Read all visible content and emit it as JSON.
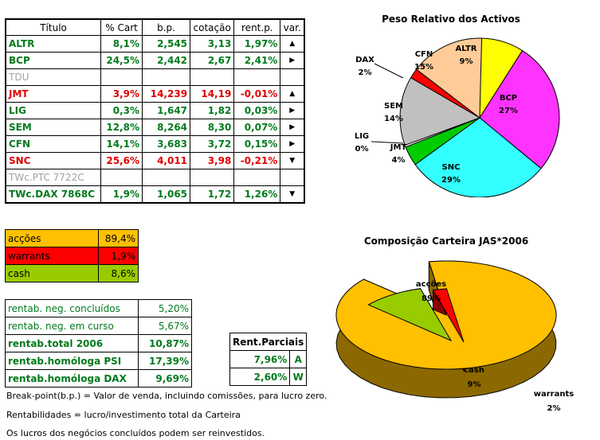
{
  "portfolio": {
    "headers": [
      "Título",
      "% Cart",
      "b.p.",
      "cotação",
      "rent.p.",
      "var."
    ],
    "rows": [
      {
        "titulo": "ALTR",
        "cart": "8,1%",
        "bp": "2,545",
        "cot": "3,13",
        "rent": "1,97%",
        "var": "▲",
        "color": "green"
      },
      {
        "titulo": "BCP",
        "cart": "24,5%",
        "bp": "2,442",
        "cot": "2,67",
        "rent": "2,41%",
        "var": "▶",
        "color": "green"
      },
      {
        "titulo": "TDU",
        "cart": "",
        "bp": "",
        "cot": "",
        "rent": "",
        "var": "",
        "color": "gray"
      },
      {
        "titulo": "JMT",
        "cart": "3,9%",
        "bp": "14,239",
        "cot": "14,19",
        "rent": "-0,01%",
        "var": "▲",
        "color": "red"
      },
      {
        "titulo": "LIG",
        "cart": "0,3%",
        "bp": "1,647",
        "cot": "1,82",
        "rent": "0,03%",
        "var": "▶",
        "color": "green"
      },
      {
        "titulo": "SEM",
        "cart": "12,8%",
        "bp": "8,264",
        "cot": "8,30",
        "rent": "0,07%",
        "var": "▶",
        "color": "green"
      },
      {
        "titulo": "CFN",
        "cart": "14,1%",
        "bp": "3,683",
        "cot": "3,72",
        "rent": "0,15%",
        "var": "▶",
        "color": "green"
      },
      {
        "titulo": "SNC",
        "cart": "25,6%",
        "bp": "4,011",
        "cot": "3,98",
        "rent": "-0,21%",
        "var": "▼",
        "color": "red"
      },
      {
        "titulo": "TWc.PTC 7722C",
        "cart": "",
        "bp": "",
        "cot": "",
        "rent": "",
        "var": "",
        "color": "gray"
      },
      {
        "titulo": "TWc.DAX 7868C",
        "cart": "1,9%",
        "bp": "1,065",
        "cot": "1,72",
        "rent": "1,26%",
        "var": "▼",
        "color": "green"
      }
    ]
  },
  "allocation": [
    {
      "label": "acções",
      "value": "89,4%",
      "bg": "#ffc000"
    },
    {
      "label": "warrants",
      "value": "1,9%",
      "bg": "#ff0000"
    },
    {
      "label": "cash",
      "value": "8,6%",
      "bg": "#99cc00"
    }
  ],
  "returns": [
    {
      "label": "rentab. neg. concluídos",
      "value": "5,20%",
      "bold": false
    },
    {
      "label": "rentab. neg. em curso",
      "value": "5,67%",
      "bold": false
    },
    {
      "label": "rentab.total 2006",
      "value": "10,87%",
      "bold": true
    },
    {
      "label": "rentab.homóloga PSI",
      "value": "17,39%",
      "bold": true
    },
    {
      "label": "rentab.homóloga DAX",
      "value": "9,69%",
      "bold": true
    }
  ],
  "partial": {
    "title": "Rent.Parciais",
    "rows": [
      {
        "value": "7,96%",
        "tag": "A"
      },
      {
        "value": "2,60%",
        "tag": "W"
      }
    ]
  },
  "notes": [
    "Break-point(b.p.) = Valor de venda, incluindo comissões, para lucro zero.",
    "Rentabilidades = lucro/investimento total da Carteira",
    "Os lucros dos negócios concluídos podem ser reinvestidos."
  ],
  "chart_data": [
    {
      "type": "pie",
      "title": "Peso Relativo dos Activos",
      "categories": [
        "ALTR",
        "BCP",
        "SNC",
        "JMT",
        "LIG",
        "SEM",
        "DAX",
        "CFN"
      ],
      "values": [
        9,
        27,
        29,
        4,
        0,
        14,
        2,
        15
      ],
      "labels": [
        "9%",
        "27%",
        "29%",
        "4%",
        "0%",
        "14%",
        "2%",
        "15%"
      ],
      "colors": [
        "#ffff00",
        "#ff33ff",
        "#33ffff",
        "#00cc00",
        "#ffffff",
        "#c0c0c0",
        "#ff0000",
        "#ffcc99"
      ]
    },
    {
      "type": "pie",
      "title": "Composição Carteira JAS*2006",
      "categories": [
        "acções",
        "cash",
        "warrants"
      ],
      "values": [
        89,
        9,
        2
      ],
      "labels": [
        "89%",
        "9%",
        "2%"
      ],
      "colors": [
        "#ffc000",
        "#99cc00",
        "#ff0000"
      ]
    }
  ]
}
